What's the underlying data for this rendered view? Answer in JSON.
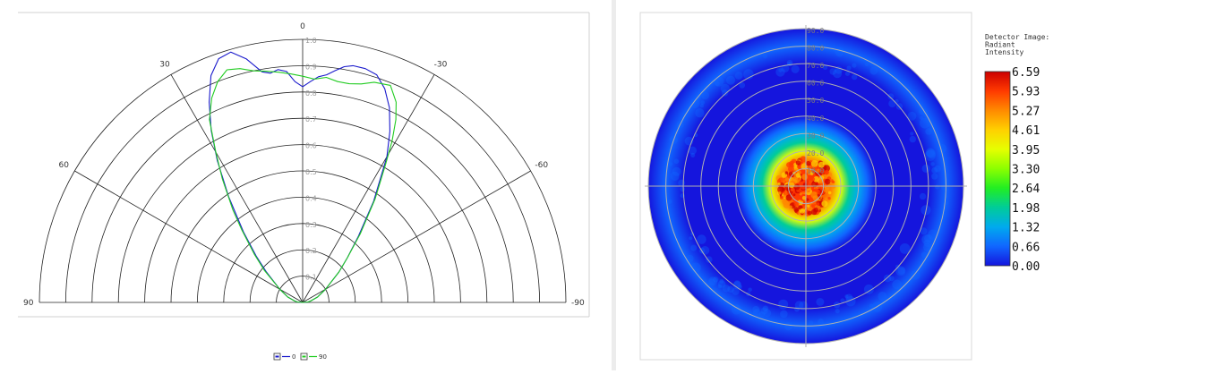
{
  "chart_data": [
    {
      "type": "line",
      "subtype": "polar-half",
      "radial_range": [
        0,
        1.0
      ],
      "radial_ticks": [
        "0.1",
        "0.2",
        "0.3",
        "0.4",
        "0.5",
        "0.6",
        "0.7",
        "0.8",
        "0.9",
        "1.0"
      ],
      "angle_labels": [
        "0",
        "30",
        "-30",
        "60",
        "-60",
        "90",
        "-90"
      ],
      "legend": {
        "position": "bottom",
        "entries": [
          "0",
          "90"
        ]
      },
      "series": [
        {
          "name": "0",
          "color": "#1a1acc",
          "points": [
            [
              -85,
              0.02
            ],
            [
              -80,
              0.03
            ],
            [
              -70,
              0.06
            ],
            [
              -60,
              0.1
            ],
            [
              -50,
              0.18
            ],
            [
              -45,
              0.24
            ],
            [
              -40,
              0.33
            ],
            [
              -35,
              0.47
            ],
            [
              -30,
              0.64
            ],
            [
              -27,
              0.73
            ],
            [
              -24,
              0.81
            ],
            [
              -21,
              0.87
            ],
            [
              -18,
              0.91
            ],
            [
              -15,
              0.92
            ],
            [
              -12,
              0.92
            ],
            [
              -10,
              0.91
            ],
            [
              -8,
              0.89
            ],
            [
              -6,
              0.87
            ],
            [
              -4,
              0.86
            ],
            [
              -2,
              0.84
            ],
            [
              0,
              0.82
            ],
            [
              2,
              0.84
            ],
            [
              4,
              0.88
            ],
            [
              6,
              0.89
            ],
            [
              8,
              0.88
            ],
            [
              10,
              0.89
            ],
            [
              13,
              0.95
            ],
            [
              16,
              0.99
            ],
            [
              19,
              0.98
            ],
            [
              22,
              0.93
            ],
            [
              25,
              0.84
            ],
            [
              28,
              0.74
            ],
            [
              31,
              0.63
            ],
            [
              35,
              0.49
            ],
            [
              40,
              0.35
            ],
            [
              45,
              0.25
            ],
            [
              50,
              0.18
            ],
            [
              60,
              0.1
            ],
            [
              70,
              0.06
            ],
            [
              80,
              0.03
            ],
            [
              85,
              0.02
            ]
          ]
        },
        {
          "name": "90",
          "color": "#22cc22",
          "points": [
            [
              -85,
              0.02
            ],
            [
              -80,
              0.03
            ],
            [
              -70,
              0.06
            ],
            [
              -60,
              0.1
            ],
            [
              -50,
              0.18
            ],
            [
              -45,
              0.24
            ],
            [
              -40,
              0.34
            ],
            [
              -35,
              0.48
            ],
            [
              -31,
              0.61
            ],
            [
              -29,
              0.7
            ],
            [
              -27,
              0.78
            ],
            [
              -25,
              0.84
            ],
            [
              -22,
              0.89
            ],
            [
              -18,
              0.88
            ],
            [
              -15,
              0.86
            ],
            [
              -12,
              0.85
            ],
            [
              -9,
              0.85
            ],
            [
              -6,
              0.86
            ],
            [
              -3,
              0.85
            ],
            [
              0,
              0.86
            ],
            [
              3,
              0.87
            ],
            [
              6,
              0.88
            ],
            [
              9,
              0.89
            ],
            [
              12,
              0.9
            ],
            [
              15,
              0.92
            ],
            [
              18,
              0.93
            ],
            [
              21,
              0.9
            ],
            [
              24,
              0.85
            ],
            [
              27,
              0.78
            ],
            [
              30,
              0.66
            ],
            [
              33,
              0.56
            ],
            [
              37,
              0.44
            ],
            [
              40,
              0.36
            ],
            [
              45,
              0.26
            ],
            [
              50,
              0.19
            ],
            [
              60,
              0.1
            ],
            [
              70,
              0.06
            ],
            [
              80,
              0.03
            ],
            [
              85,
              0.02
            ]
          ]
        }
      ]
    },
    {
      "type": "heatmap",
      "subtype": "polar-detector-image",
      "title": "Detector Image:\nRadiant\nIntensity",
      "ring_labels": [
        "10.0",
        "20.0",
        "30.0",
        "40.0",
        "50.0",
        "60.0",
        "70.0",
        "80.0",
        "90.0"
      ],
      "colorbar": {
        "min": 0.0,
        "max": 6.59,
        "ticks": [
          "6.59",
          "5.93",
          "5.27",
          "4.61",
          "3.95",
          "3.30",
          "2.64",
          "1.98",
          "1.32",
          "0.66",
          "0.00"
        ],
        "colors": [
          "#cc0000",
          "#ff3a00",
          "#ff8a00",
          "#ffd000",
          "#e6ff00",
          "#8cff00",
          "#22ee22",
          "#00cc99",
          "#00aaee",
          "#1066ff",
          "#1515dd"
        ]
      },
      "profile": [
        {
          "angle": 0,
          "value": 6.2
        },
        {
          "angle": 8,
          "value": 5.9
        },
        {
          "angle": 15,
          "value": 5.3
        },
        {
          "angle": 20,
          "value": 3.8
        },
        {
          "angle": 25,
          "value": 2.2
        },
        {
          "angle": 30,
          "value": 1.2
        },
        {
          "angle": 35,
          "value": 0.55
        },
        {
          "angle": 40,
          "value": 0.3
        },
        {
          "angle": 70,
          "value": 0.3
        },
        {
          "angle": 80,
          "value": 0.45
        },
        {
          "angle": 90,
          "value": 0.3
        }
      ]
    }
  ]
}
